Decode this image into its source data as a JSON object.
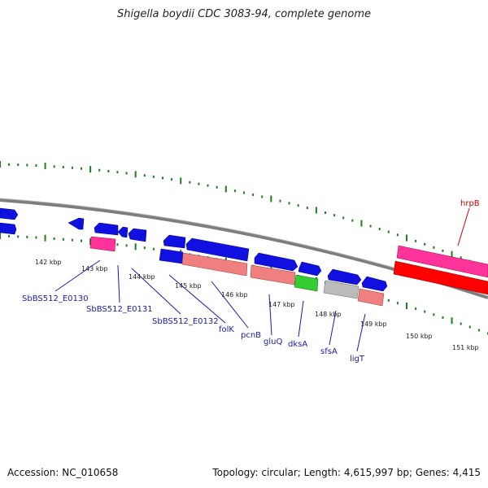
{
  "title": "Shigella boydii CDC 3083-94, complete genome",
  "footer": {
    "accession": "Accession: NC_010658",
    "topology": "Topology: circular; Length: 4,615,997 bp; Genes: 4,415"
  },
  "colors": {
    "backbone": "#7d7d7d",
    "tick": "#1e7d1e",
    "gene_forward": "#1010e0",
    "rna_pink": "#ff3399",
    "pseudo_salmon": "#f08080",
    "green_feature": "#33cc33",
    "grey_feature": "#bbbbbb",
    "red_feature": "#ff0000",
    "label_blue": "#1a1aa6",
    "label_red": "#cc0000"
  },
  "scale_ticks": [
    {
      "label": "142 kbp"
    },
    {
      "label": "143 kbp"
    },
    {
      "label": "144 kbp"
    },
    {
      "label": "145 kbp"
    },
    {
      "label": "146 kbp"
    },
    {
      "label": "147 kbp"
    },
    {
      "label": "148 kbp"
    },
    {
      "label": "149 kbp"
    },
    {
      "label": "150 kbp"
    },
    {
      "label": "151 kbp"
    }
  ],
  "gene_labels": [
    {
      "name": "SbBS512_E0130"
    },
    {
      "name": "SbBS512_E0131"
    },
    {
      "name": "SbBS512_E0132"
    },
    {
      "name": "folK"
    },
    {
      "name": "pcnB"
    },
    {
      "name": "gluQ"
    },
    {
      "name": "dksA"
    },
    {
      "name": "sfsA"
    },
    {
      "name": "ligT"
    },
    {
      "name": "hrpB"
    }
  ]
}
